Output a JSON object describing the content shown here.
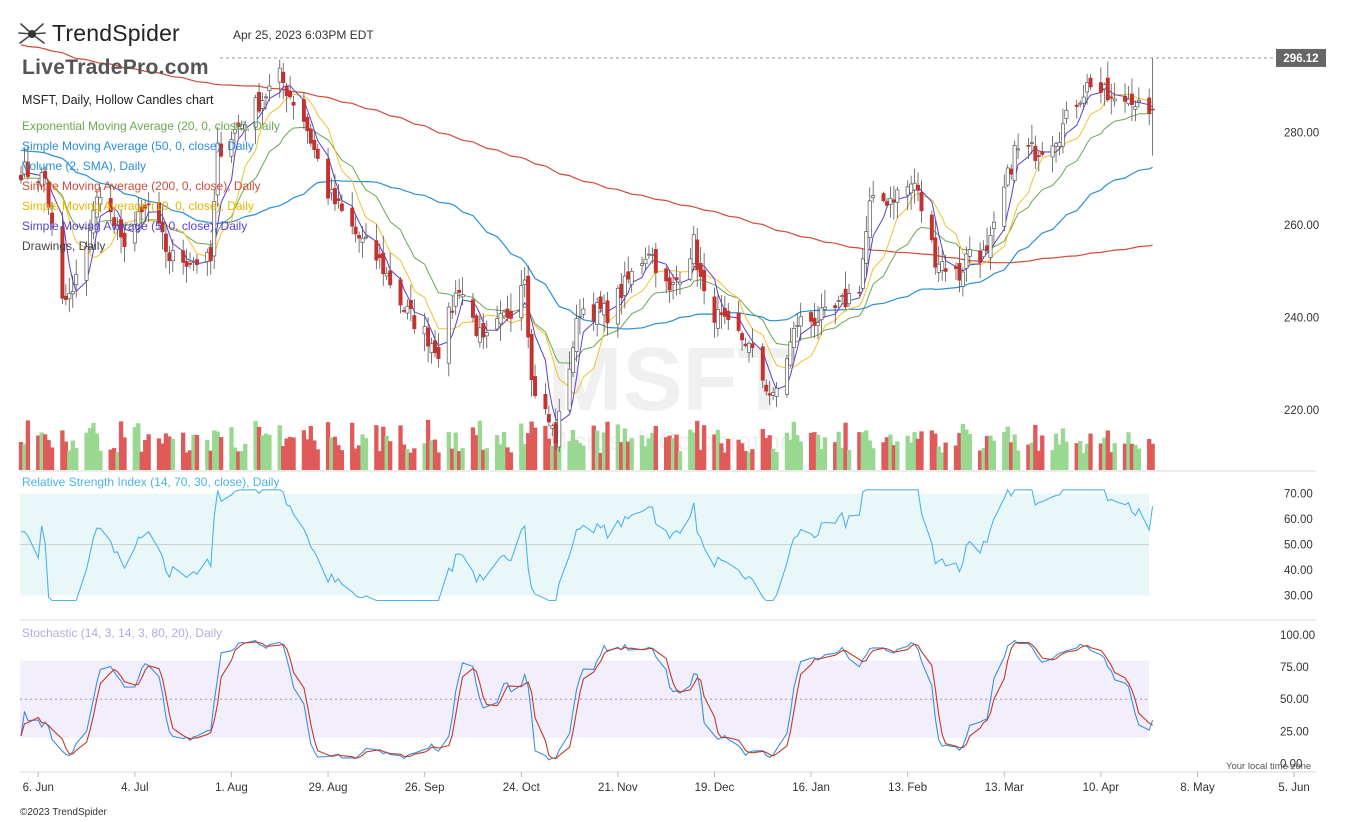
{
  "header": {
    "logo_text": "TrendSpider",
    "timestamp": "Apr 25, 2023 6:03PM EDT",
    "watermark": "LiveTradePro.com",
    "copyright": "©2023 TrendSpider",
    "timezone_note": "Your local time zone"
  },
  "legend": {
    "title": "MSFT, Daily, Hollow Candles chart",
    "items": [
      {
        "label": "Exponential Moving Average (20, 0, close), Daily",
        "color": "#6aa84f"
      },
      {
        "label": "Simple Moving Average (50, 0, close), Daily",
        "color": "#2b8fd8"
      },
      {
        "label": "Volume (2, SMA), Daily",
        "color": "#2b8fd8"
      },
      {
        "label": "Simple Moving Average (200, 0, close), Daily",
        "color": "#d14b3a"
      },
      {
        "label": "Simple Moving Average (10, 0, close), Daily",
        "color": "#e8b400"
      },
      {
        "label": "Simple Moving Average (5, 0, close), Daily",
        "color": "#5a3fd0"
      },
      {
        "label": "Drawings, Daily",
        "color": "#444444"
      }
    ],
    "rsi_label": "Relative Strength Index (14, 70, 30, close), Daily",
    "stoch_label": "Stochastic (14, 3, 14, 3, 80, 20), Daily"
  },
  "colors": {
    "up": "#8fd187",
    "down": "#d63c3c",
    "upVol": "#98d890",
    "downVol": "#e05a5a",
    "ema20": "#6aa84f",
    "sma50": "#2b8fd8",
    "sma200": "#d14b3a",
    "sma10": "#f2c12e",
    "sma5": "#5a3fd0",
    "rsi": "#4db3e8",
    "rsiBand": "#e9f7f9",
    "stochK": "#3c8fe0",
    "stochD": "#c23a2a",
    "stochBand": "#f2eefb"
  },
  "chart_data": [
    {
      "type": "candlestick",
      "title": "MSFT, Daily, Hollow Candles chart",
      "watermark": "MSFT",
      "subtitle_watermark": "Microsoft Corporation",
      "x_tick_labels": [
        "6. Jun",
        "4. Jul",
        "1. Aug",
        "29. Aug",
        "26. Sep",
        "24. Oct",
        "21. Nov",
        "19. Dec",
        "16. Jan",
        "13. Feb",
        "13. Mar",
        "10. Apr",
        "8. May",
        "5. Jun"
      ],
      "y_tick_labels": [
        "220.00",
        "240.00",
        "260.00",
        "280.00"
      ],
      "ylim": [
        207,
        300
      ],
      "last_price": "296.12",
      "x_start": "2022-06-01",
      "x_end": "2023-04-25",
      "close_anchors": [
        [
          "2022-06-01",
          272
        ],
        [
          "2022-06-08",
          270
        ],
        [
          "2022-06-13",
          243
        ],
        [
          "2022-06-16",
          245
        ],
        [
          "2022-06-24",
          268
        ],
        [
          "2022-06-30",
          256
        ],
        [
          "2022-07-08",
          264
        ],
        [
          "2022-07-14",
          253
        ],
        [
          "2022-07-26",
          252
        ],
        [
          "2022-07-28",
          276
        ],
        [
          "2022-08-05",
          283
        ],
        [
          "2022-08-15",
          292
        ],
        [
          "2022-08-22",
          283
        ],
        [
          "2022-08-29",
          267
        ],
        [
          "2022-09-06",
          258
        ],
        [
          "2022-09-13",
          252
        ],
        [
          "2022-09-20",
          242
        ],
        [
          "2022-09-30",
          233
        ],
        [
          "2022-10-06",
          247
        ],
        [
          "2022-10-13",
          234
        ],
        [
          "2022-10-21",
          242
        ],
        [
          "2022-10-25",
          250
        ],
        [
          "2022-10-27",
          226
        ],
        [
          "2022-11-03",
          214
        ],
        [
          "2022-11-10",
          242
        ],
        [
          "2022-11-18",
          241
        ],
        [
          "2022-11-30",
          255
        ],
        [
          "2022-12-06",
          245
        ],
        [
          "2022-12-13",
          256
        ],
        [
          "2022-12-16",
          244
        ],
        [
          "2022-12-22",
          238
        ],
        [
          "2022-12-28",
          235
        ],
        [
          "2023-01-05",
          222
        ],
        [
          "2023-01-12",
          239
        ],
        [
          "2023-01-20",
          240
        ],
        [
          "2023-01-24",
          242
        ],
        [
          "2023-01-30",
          247
        ],
        [
          "2023-02-02",
          264
        ],
        [
          "2023-02-08",
          266
        ],
        [
          "2023-02-15",
          269
        ],
        [
          "2023-02-21",
          253
        ],
        [
          "2023-02-28",
          249
        ],
        [
          "2023-03-03",
          255
        ],
        [
          "2023-03-08",
          253
        ],
        [
          "2023-03-16",
          276
        ],
        [
          "2023-03-22",
          276
        ],
        [
          "2023-03-29",
          280
        ],
        [
          "2023-04-03",
          287
        ],
        [
          "2023-04-07",
          291
        ],
        [
          "2023-04-14",
          286
        ],
        [
          "2023-04-19",
          288
        ],
        [
          "2023-04-24",
          282
        ],
        [
          "2023-04-25",
          275
        ]
      ],
      "overlays": [
        "EMA 20",
        "SMA 50",
        "SMA 200",
        "SMA 10",
        "SMA 5"
      ]
    },
    {
      "type": "line",
      "title": "Relative Strength Index (14, 70, 30, close), Daily",
      "y_tick_labels": [
        "30.00",
        "40.00",
        "50.00",
        "60.00",
        "70.00"
      ],
      "ylim": [
        27,
        73
      ],
      "band": [
        30,
        70
      ]
    },
    {
      "type": "line",
      "title": "Stochastic (14, 3, 14, 3, 80, 20), Daily",
      "y_tick_labels": [
        "0.00",
        "25.00",
        "50.00",
        "75.00",
        "100.00"
      ],
      "ylim": [
        -5,
        103
      ],
      "band": [
        20,
        80
      ]
    }
  ]
}
